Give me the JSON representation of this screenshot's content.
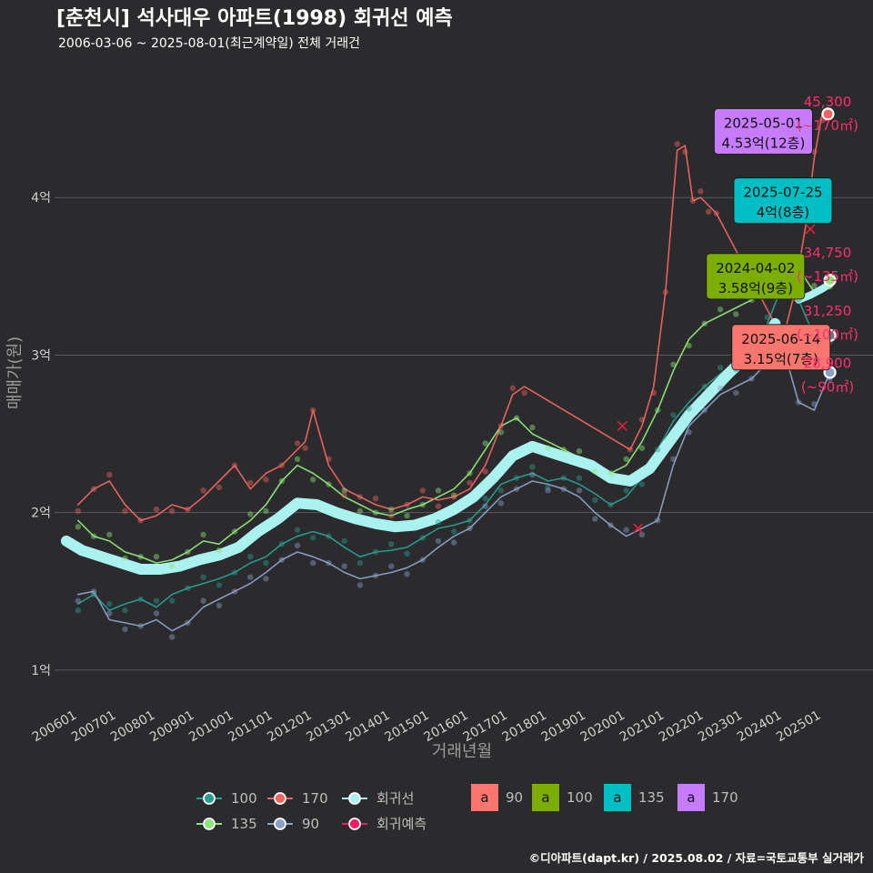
{
  "title": "[춘천시] 석사대우 아파트(1998) 회귀선 예측",
  "subtitle": "2006-03-06 ~ 2025-08-01(최근계약일) 전체 거래건",
  "credit": "©디아파트(dapt.kr) / 2025.08.02 / 자료=국토교통부 실거래가",
  "colors": {
    "background": "#2b2b2d",
    "grid": "#5a5a5c",
    "s100": "#2a9d8f",
    "s170": "#ef6461",
    "s135": "#8ee57a",
    "s90": "#8aa0c8",
    "trend": "#aaf2f0",
    "forecast": "#ff1a66",
    "box90": "#f8766d",
    "box100": "#7cae00",
    "box135": "#00bfc4",
    "box170": "#c77cff"
  },
  "chart_data": {
    "type": "line",
    "xlabel": "거래년월",
    "ylabel": "매매가(원)",
    "x_range": [
      2005.6,
      2026.5
    ],
    "ylim": [
      0.78,
      4.85
    ],
    "y_ticks": [
      {
        "value": 1,
        "label": "1억"
      },
      {
        "value": 2,
        "label": "2억"
      },
      {
        "value": 3,
        "label": "3억"
      },
      {
        "value": 4,
        "label": "4억"
      }
    ],
    "x_ticks": [
      {
        "value": 2006.0,
        "label": "200601"
      },
      {
        "value": 2007.0,
        "label": "200701"
      },
      {
        "value": 2008.0,
        "label": "200801"
      },
      {
        "value": 2009.0,
        "label": "200901"
      },
      {
        "value": 2010.0,
        "label": "201001"
      },
      {
        "value": 2011.0,
        "label": "201101"
      },
      {
        "value": 2012.0,
        "label": "201201"
      },
      {
        "value": 2013.0,
        "label": "201301"
      },
      {
        "value": 2014.0,
        "label": "201401"
      },
      {
        "value": 2015.0,
        "label": "201501"
      },
      {
        "value": 2016.0,
        "label": "201601"
      },
      {
        "value": 2017.0,
        "label": "201701"
      },
      {
        "value": 2018.0,
        "label": "201801"
      },
      {
        "value": 2019.0,
        "label": "201901"
      },
      {
        "value": 2020.0,
        "label": "202001"
      },
      {
        "value": 2021.0,
        "label": "202101"
      },
      {
        "value": 2022.0,
        "label": "202201"
      },
      {
        "value": 2023.0,
        "label": "202301"
      },
      {
        "value": 2024.0,
        "label": "202401"
      },
      {
        "value": 2025.0,
        "label": "202501"
      }
    ],
    "series": [
      {
        "name": "100",
        "color_key": "s100",
        "x": [
          2006.2,
          2006.6,
          2007.0,
          2007.4,
          2007.8,
          2008.2,
          2008.6,
          2009.0,
          2009.4,
          2009.8,
          2010.2,
          2010.6,
          2011.0,
          2011.4,
          2011.8,
          2012.2,
          2012.6,
          2013.0,
          2013.4,
          2013.8,
          2014.2,
          2014.6,
          2015.0,
          2015.4,
          2015.8,
          2016.2,
          2016.6,
          2017.0,
          2017.4,
          2017.8,
          2018.2,
          2018.6,
          2019.0,
          2019.4,
          2019.8,
          2020.2,
          2020.6,
          2021.0,
          2021.4,
          2021.8,
          2022.2,
          2022.6,
          2023.0,
          2023.4,
          2023.8,
          2024.2,
          2024.6,
          2025.0,
          2025.4
        ],
        "y": [
          1.42,
          1.48,
          1.38,
          1.42,
          1.45,
          1.4,
          1.48,
          1.52,
          1.55,
          1.58,
          1.62,
          1.68,
          1.72,
          1.8,
          1.85,
          1.88,
          1.85,
          1.78,
          1.72,
          1.75,
          1.76,
          1.78,
          1.84,
          1.9,
          1.92,
          1.95,
          2.05,
          2.18,
          2.22,
          2.25,
          2.2,
          2.22,
          2.18,
          2.12,
          2.05,
          2.1,
          2.22,
          2.4,
          2.58,
          2.7,
          2.8,
          2.88,
          2.95,
          3.0,
          3.2,
          3.45,
          3.35,
          3.12,
          3.125
        ]
      },
      {
        "name": "170",
        "color_key": "s170",
        "x": [
          2006.2,
          2006.6,
          2007.0,
          2007.4,
          2007.8,
          2008.2,
          2008.6,
          2009.0,
          2009.4,
          2009.8,
          2010.2,
          2010.6,
          2011.0,
          2011.4,
          2011.8,
          2012.0,
          2012.2,
          2012.6,
          2013.0,
          2013.4,
          2013.8,
          2014.2,
          2014.6,
          2015.0,
          2015.4,
          2015.8,
          2016.2,
          2016.6,
          2017.0,
          2017.3,
          2017.6,
          2020.3,
          2020.6,
          2020.9,
          2021.2,
          2021.5,
          2021.7,
          2021.9,
          2022.1,
          2022.3,
          2022.5,
          2024.2,
          2024.5,
          2024.8,
          2025.0,
          2025.2,
          2025.35
        ],
        "y": [
          2.05,
          2.15,
          2.2,
          2.05,
          1.95,
          1.98,
          2.05,
          2.02,
          2.1,
          2.2,
          2.3,
          2.15,
          2.25,
          2.3,
          2.4,
          2.45,
          2.65,
          2.3,
          2.15,
          2.1,
          2.05,
          2.02,
          2.05,
          2.1,
          2.08,
          2.1,
          2.15,
          2.3,
          2.55,
          2.75,
          2.8,
          2.4,
          2.55,
          2.8,
          3.4,
          4.3,
          4.33,
          3.98,
          4.0,
          3.95,
          3.9,
          3.1,
          3.4,
          3.85,
          4.25,
          4.53,
          4.53
        ]
      },
      {
        "name": "135",
        "color_key": "s135",
        "x": [
          2006.2,
          2006.6,
          2007.0,
          2007.4,
          2007.8,
          2008.2,
          2008.6,
          2009.0,
          2009.4,
          2009.8,
          2010.2,
          2010.6,
          2011.0,
          2011.4,
          2011.8,
          2012.2,
          2012.6,
          2013.0,
          2013.4,
          2013.8,
          2014.2,
          2014.6,
          2015.0,
          2015.4,
          2015.8,
          2016.2,
          2016.6,
          2017.0,
          2017.4,
          2017.8,
          2018.2,
          2018.6,
          2019.0,
          2019.4,
          2019.8,
          2020.2,
          2020.6,
          2021.0,
          2021.4,
          2021.8,
          2022.2,
          2022.6,
          2023.0,
          2023.4,
          2023.8,
          2024.2,
          2024.6,
          2025.0,
          2025.4
        ],
        "y": [
          1.95,
          1.85,
          1.82,
          1.75,
          1.72,
          1.68,
          1.7,
          1.75,
          1.82,
          1.8,
          1.88,
          1.95,
          2.05,
          2.2,
          2.3,
          2.25,
          2.18,
          2.1,
          2.05,
          2.0,
          1.98,
          2.02,
          2.05,
          2.1,
          2.15,
          2.25,
          2.4,
          2.55,
          2.6,
          2.5,
          2.45,
          2.4,
          2.35,
          2.3,
          2.25,
          2.3,
          2.45,
          2.65,
          2.9,
          3.1,
          3.2,
          3.25,
          3.3,
          3.35,
          3.5,
          3.6,
          3.55,
          3.4,
          3.475
        ]
      },
      {
        "name": "90",
        "color_key": "s90",
        "x": [
          2006.2,
          2006.6,
          2007.0,
          2007.4,
          2007.8,
          2008.2,
          2008.6,
          2009.0,
          2009.4,
          2009.8,
          2010.2,
          2010.6,
          2011.0,
          2011.4,
          2011.8,
          2012.2,
          2012.6,
          2013.0,
          2013.4,
          2013.8,
          2014.2,
          2014.6,
          2015.0,
          2015.4,
          2015.8,
          2016.2,
          2016.6,
          2017.0,
          2017.4,
          2017.8,
          2018.2,
          2018.6,
          2019.0,
          2019.4,
          2019.8,
          2020.2,
          2020.6,
          2021.0,
          2021.4,
          2021.8,
          2022.2,
          2022.6,
          2023.0,
          2023.4,
          2023.8,
          2024.2,
          2024.6,
          2025.0,
          2025.4
        ],
        "y": [
          1.48,
          1.5,
          1.32,
          1.3,
          1.28,
          1.32,
          1.25,
          1.3,
          1.4,
          1.45,
          1.5,
          1.55,
          1.62,
          1.7,
          1.75,
          1.72,
          1.68,
          1.62,
          1.58,
          1.6,
          1.62,
          1.65,
          1.7,
          1.78,
          1.85,
          1.9,
          2.0,
          2.1,
          2.15,
          2.2,
          2.18,
          2.15,
          2.1,
          2.0,
          1.92,
          1.85,
          1.9,
          1.95,
          2.3,
          2.55,
          2.65,
          2.75,
          2.8,
          2.85,
          2.95,
          3.05,
          2.7,
          2.65,
          2.89
        ]
      },
      {
        "name": "회귀선",
        "color_key": "trend",
        "x": [
          2005.9,
          2006.3,
          2006.8,
          2007.3,
          2007.8,
          2008.3,
          2008.8,
          2009.3,
          2009.8,
          2010.3,
          2010.8,
          2011.3,
          2011.8,
          2012.3,
          2012.8,
          2013.3,
          2013.8,
          2014.3,
          2014.8,
          2015.3,
          2015.8,
          2016.3,
          2016.8,
          2017.3,
          2017.8,
          2018.3,
          2018.8,
          2019.3,
          2019.8,
          2020.3,
          2020.8,
          2021.3,
          2021.8,
          2022.3,
          2022.8,
          2023.3,
          2023.8,
          2024.0
        ],
        "y": [
          1.82,
          1.76,
          1.72,
          1.68,
          1.64,
          1.64,
          1.66,
          1.7,
          1.73,
          1.78,
          1.88,
          1.96,
          2.06,
          2.05,
          2.0,
          1.96,
          1.93,
          1.91,
          1.92,
          1.96,
          2.02,
          2.1,
          2.22,
          2.36,
          2.42,
          2.38,
          2.34,
          2.3,
          2.22,
          2.2,
          2.28,
          2.45,
          2.62,
          2.75,
          2.88,
          3.0,
          3.12,
          3.2
        ]
      },
      {
        "name": "회귀예측",
        "color_key": "forecast",
        "x": [
          2024.6,
          2024.9,
          2025.2,
          2025.4
        ],
        "y": [
          3.35,
          3.38,
          3.42,
          3.45
        ]
      }
    ],
    "box_annotations": [
      {
        "date": "2025-05-01",
        "value": "4.53억(12층)",
        "legend": "170",
        "cx": 2023.7,
        "cy": 4.42
      },
      {
        "date": "2025-07-25",
        "value": "4억(8층)",
        "legend": "135",
        "cx": 2024.2,
        "cy": 3.98
      },
      {
        "date": "2024-04-02",
        "value": "3.58억(9층)",
        "legend": "100",
        "cx": 2023.5,
        "cy": 3.5
      },
      {
        "date": "2025-06-14",
        "value": "3.15억(7층)",
        "legend": "90",
        "cx": 2024.15,
        "cy": 3.05
      }
    ],
    "side_annotations": [
      {
        "price": "45,300",
        "area": "(~170㎡)",
        "ax": 2025.35,
        "ay": 4.53,
        "ty": 4.58
      },
      {
        "price": "34,750",
        "area": "(~135㎡)",
        "ax": 2025.4,
        "ay": 3.475,
        "ty": 3.62
      },
      {
        "price": "31,250",
        "area": "(~100㎡)",
        "ax": 2025.4,
        "ay": 3.125,
        "ty": 3.25
      },
      {
        "price": "28,900",
        "area": "(~90㎡)",
        "ax": 2025.4,
        "ay": 2.89,
        "ty": 2.92
      }
    ],
    "cross_marks": [
      {
        "x": 2020.1,
        "y": 2.55
      },
      {
        "x": 2020.5,
        "y": 1.9
      },
      {
        "x": 2024.9,
        "y": 3.8
      },
      {
        "x": 2025.1,
        "y": 3.0
      }
    ],
    "legend": {
      "lines": [
        {
          "label": "100",
          "color_key": "s100"
        },
        {
          "label": "170",
          "color_key": "s170"
        },
        {
          "label": "회귀선",
          "color_key": "trend"
        },
        {
          "label": "135",
          "color_key": "s135"
        },
        {
          "label": "90",
          "color_key": "s90"
        },
        {
          "label": "회귀예측",
          "color_key": "forecast"
        }
      ],
      "boxes": [
        {
          "label": "90",
          "color_key": "box90",
          "glyph": "a"
        },
        {
          "label": "100",
          "color_key": "box100",
          "glyph": "a"
        },
        {
          "label": "135",
          "color_key": "box135",
          "glyph": "a"
        },
        {
          "label": "170",
          "color_key": "box170",
          "glyph": "a"
        }
      ]
    }
  }
}
